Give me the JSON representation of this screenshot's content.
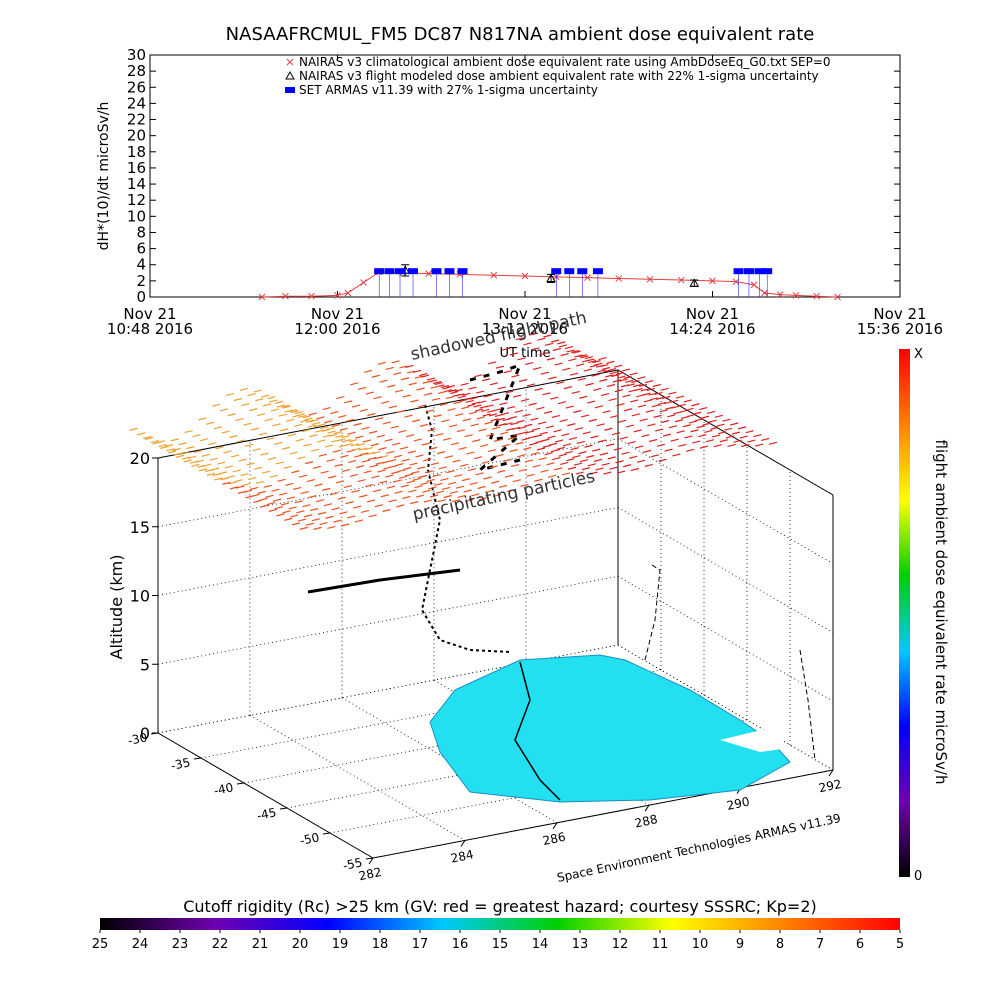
{
  "chart_data": [
    {
      "type": "line",
      "title": "NASAAFRCMUL_FM5 DC87 N817NA ambient dose equivalent rate",
      "ylabel": "dH*(10)/dt microSv/h",
      "xlabel": "UT time",
      "xlim": [
        "10:48",
        "15:36"
      ],
      "xticks": [
        {
          "value": "10:48",
          "label": [
            "Nov 21",
            "10:48 2016"
          ]
        },
        {
          "value": "12:00",
          "label": [
            "Nov 21",
            "12:00 2016"
          ]
        },
        {
          "value": "13:12",
          "label": [
            "Nov 21",
            "13:12 2016"
          ]
        },
        {
          "value": "14:24",
          "label": [
            "Nov 21",
            "14:24 2016"
          ]
        },
        {
          "value": "15:36",
          "label": [
            "Nov 21",
            "15:36 2016"
          ]
        }
      ],
      "ylim": [
        0,
        30
      ],
      "yticks": [
        0,
        2,
        4,
        6,
        8,
        10,
        12,
        14,
        16,
        18,
        20,
        22,
        24,
        26,
        28,
        30
      ],
      "series": [
        {
          "name": "NAIRAS v3 climatological ambient dose equivalent rate using AmbDoseEq_G0.txt SEP=0",
          "color": "#e04040",
          "marker": "x",
          "x": [
            "11:31",
            "11:40",
            "11:50",
            "12:00",
            "12:04",
            "12:10",
            "12:16",
            "12:25",
            "12:35",
            "12:47",
            "13:00",
            "13:12",
            "13:24",
            "13:36",
            "13:48",
            "14:00",
            "14:12",
            "14:24",
            "14:33",
            "14:40",
            "14:44",
            "14:50",
            "14:56",
            "15:04",
            "15:12"
          ],
          "values": [
            0,
            0.1,
            0.1,
            0.2,
            0.5,
            1.8,
            3.1,
            3.0,
            2.9,
            2.8,
            2.7,
            2.6,
            2.5,
            2.4,
            2.3,
            2.2,
            2.1,
            2.0,
            1.9,
            1.5,
            0.5,
            0.3,
            0.2,
            0.1,
            0
          ]
        },
        {
          "name": "NAIRAS v3 flight modeled dose ambient equivalent rate with 22% 1-sigma uncertainty",
          "color": "#000000",
          "marker": "triangle",
          "x": [
            "12:26",
            "13:22",
            "14:17"
          ],
          "values": [
            3.3,
            2.3,
            1.7
          ],
          "errors": [
            0.7,
            0.5,
            0.4
          ]
        },
        {
          "name": "SET ARMAS v11.39 with 27% 1-sigma uncertainty",
          "color": "#0000ff",
          "marker": "square",
          "x": [
            "12:16",
            "12:20",
            "12:24",
            "12:29",
            "12:38",
            "12:43",
            "12:48",
            "13:24",
            "13:29",
            "13:34",
            "13:40",
            "14:34",
            "14:38",
            "14:42",
            "14:45"
          ],
          "values": [
            3.2,
            3.2,
            3.2,
            3.2,
            3.2,
            3.2,
            3.2,
            3.2,
            3.2,
            3.2,
            3.2,
            3.2,
            3.2,
            3.2,
            3.2
          ]
        }
      ]
    },
    {
      "type": "surface3d",
      "zlabel": "Altitude (km)",
      "zlim": [
        0,
        20
      ],
      "zticks": [
        0,
        5,
        10,
        15,
        20
      ],
      "ylim": [
        -30,
        -55
      ],
      "yticks": [
        -30,
        -35,
        -40,
        -45,
        -50,
        -55
      ],
      "xlim": [
        282,
        292
      ],
      "xticks": [
        282,
        284,
        286,
        288,
        290,
        292
      ],
      "annotations": [
        "shadowed flight path",
        "precipitating particles",
        "Space Environment Technologies ARMAS v11.39"
      ]
    },
    {
      "type": "colorbar",
      "label": "flight ambient dose equivalent rate microSv/h",
      "end_labels": [
        "0",
        "X"
      ],
      "colors": [
        "#000000",
        "#7000b0",
        "#0000ff",
        "#00c8ff",
        "#00d000",
        "#ffff00",
        "#ff8000",
        "#ff0000"
      ]
    },
    {
      "type": "colorbar",
      "label": "Cutoff rigidity (Rc) >25 km (GV: red = greatest hazard; courtesy SSSRC; Kp=2)",
      "lim": [
        25,
        5
      ],
      "ticks": [
        25,
        24,
        23,
        22,
        21,
        20,
        19,
        18,
        17,
        16,
        15,
        14,
        13,
        12,
        11,
        10,
        9,
        8,
        7,
        6,
        5
      ],
      "colors": [
        "#000000",
        "#7000b0",
        "#0000ff",
        "#00c8ff",
        "#00d000",
        "#ffff00",
        "#ff8000",
        "#ff0000"
      ]
    }
  ]
}
